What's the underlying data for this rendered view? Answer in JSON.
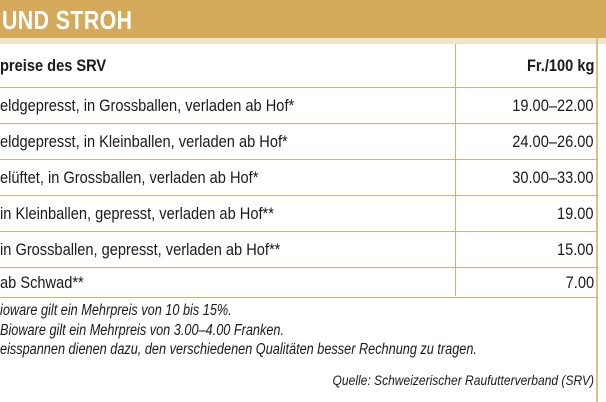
{
  "banner": {
    "title": " UND STROH"
  },
  "table": {
    "header": {
      "left": "preise des SRV",
      "right": "Fr./100 kg"
    },
    "rows": [
      {
        "label": "eldgepresst, in Grossballen, verladen ab Hof*",
        "price": "19.00–22.00"
      },
      {
        "label": "eldgepresst, in Kleinballen, verladen ab Hof*",
        "price": "24.00–26.00"
      },
      {
        "label": "elüftet, in Grossballen, verladen ab Hof*",
        "price": "30.00–33.00"
      },
      {
        "label": "in Kleinballen, gepresst, verladen ab Hof**",
        "price": "19.00"
      },
      {
        "label": "in Grossballen, gepresst, verladen ab Hof**",
        "price": "15.00"
      },
      {
        "label": "ab Schwad**",
        "price": "7.00"
      }
    ]
  },
  "notes": [
    "ioware gilt ein Mehrpreis von 10 bis 15%.",
    "Bioware gilt ein Mehrpreis von 3.00–4.00 Franken.",
    "eisspannen dienen dazu, den verschiedenen Qualitäten besser Rechnung zu tragen."
  ],
  "source": "Quelle: Schweizerischer Raufutterverband (SRV)"
}
